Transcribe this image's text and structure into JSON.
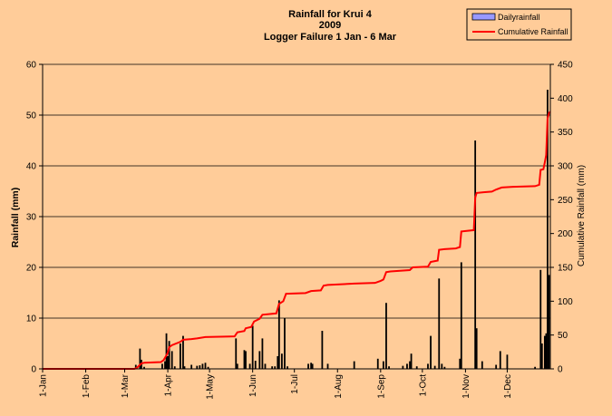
{
  "chart_data": {
    "type": "bar+line",
    "title": [
      "Rainfall  for Krui 4",
      "2009",
      "Logger Failure 1 Jan - 6 Mar"
    ],
    "ylabel_left": "Rainfall (mm)",
    "ylabel_right": "Cumulative Rainfall (mm)",
    "ylim_left": [
      0,
      60
    ],
    "ylim_right": [
      0,
      450
    ],
    "yticks_left": [
      "0",
      "10",
      "20",
      "30",
      "40",
      "50",
      "60"
    ],
    "yticks_right": [
      "0",
      "50",
      "100",
      "150",
      "200",
      "250",
      "300",
      "350",
      "400",
      "450"
    ],
    "x_domain_days": [
      1,
      366
    ],
    "xticks": [
      {
        "label": "1-Jan",
        "day": 1
      },
      {
        "label": "1-Feb",
        "day": 32
      },
      {
        "label": "1-Mar",
        "day": 60
      },
      {
        "label": "1-Apr",
        "day": 91
      },
      {
        "label": "1-May",
        "day": 121
      },
      {
        "label": "1-Jun",
        "day": 152
      },
      {
        "label": "1-Jul",
        "day": 182
      },
      {
        "label": "1-Aug",
        "day": 213
      },
      {
        "label": "1-Sep",
        "day": 244
      },
      {
        "label": "1-Oct",
        "day": 274
      },
      {
        "label": "1-Nov",
        "day": 305
      },
      {
        "label": "1-Dec",
        "day": 335
      }
    ],
    "legend": {
      "position": "top-right",
      "bar_label": "Dailyrainfall",
      "line_label": "Cumulative Rainfall"
    },
    "colors": {
      "bar": "#000000",
      "bar_legend_fill": "#9999FF",
      "line": "#FF0000",
      "background": "#FFCC99",
      "grid": "#000000"
    },
    "grid": true,
    "daily_rainfall": [
      {
        "day": 68,
        "mm": 0.8
      },
      {
        "day": 71,
        "mm": 4.0
      },
      {
        "day": 72,
        "mm": 1.8
      },
      {
        "day": 74,
        "mm": 0.4
      },
      {
        "day": 87,
        "mm": 1.0
      },
      {
        "day": 89,
        "mm": 1.5
      },
      {
        "day": 90,
        "mm": 7.0
      },
      {
        "day": 91,
        "mm": 2.5
      },
      {
        "day": 92,
        "mm": 5.5
      },
      {
        "day": 94,
        "mm": 3.5
      },
      {
        "day": 96,
        "mm": 0.5
      },
      {
        "day": 100,
        "mm": 5.0
      },
      {
        "day": 102,
        "mm": 6.5
      },
      {
        "day": 103,
        "mm": 0.5
      },
      {
        "day": 108,
        "mm": 0.8
      },
      {
        "day": 112,
        "mm": 0.6
      },
      {
        "day": 114,
        "mm": 0.7
      },
      {
        "day": 116,
        "mm": 1.0
      },
      {
        "day": 118,
        "mm": 1.2
      },
      {
        "day": 120,
        "mm": 0.4
      },
      {
        "day": 140,
        "mm": 6.0
      },
      {
        "day": 141,
        "mm": 1.0
      },
      {
        "day": 146,
        "mm": 3.7
      },
      {
        "day": 147,
        "mm": 3.5
      },
      {
        "day": 150,
        "mm": 1.0
      },
      {
        "day": 152,
        "mm": 8.5
      },
      {
        "day": 154,
        "mm": 1.6
      },
      {
        "day": 157,
        "mm": 3.5
      },
      {
        "day": 159,
        "mm": 6.0
      },
      {
        "day": 161,
        "mm": 1.0
      },
      {
        "day": 166,
        "mm": 0.5
      },
      {
        "day": 168,
        "mm": 0.5
      },
      {
        "day": 170,
        "mm": 2.5
      },
      {
        "day": 171,
        "mm": 13.5
      },
      {
        "day": 173,
        "mm": 3.0
      },
      {
        "day": 175,
        "mm": 10.0
      },
      {
        "day": 177,
        "mm": 0.5
      },
      {
        "day": 192,
        "mm": 1.0
      },
      {
        "day": 194,
        "mm": 1.2
      },
      {
        "day": 195,
        "mm": 1.0
      },
      {
        "day": 202,
        "mm": 7.5
      },
      {
        "day": 206,
        "mm": 1.0
      },
      {
        "day": 225,
        "mm": 1.5
      },
      {
        "day": 242,
        "mm": 2.0
      },
      {
        "day": 246,
        "mm": 1.5
      },
      {
        "day": 248,
        "mm": 13.0
      },
      {
        "day": 250,
        "mm": 0.5
      },
      {
        "day": 260,
        "mm": 0.6
      },
      {
        "day": 263,
        "mm": 1.0
      },
      {
        "day": 265,
        "mm": 1.5
      },
      {
        "day": 266,
        "mm": 3.0
      },
      {
        "day": 270,
        "mm": 0.5
      },
      {
        "day": 278,
        "mm": 1.0
      },
      {
        "day": 280,
        "mm": 6.5
      },
      {
        "day": 283,
        "mm": 0.6
      },
      {
        "day": 286,
        "mm": 17.8
      },
      {
        "day": 288,
        "mm": 1.0
      },
      {
        "day": 290,
        "mm": 0.4
      },
      {
        "day": 301,
        "mm": 2.0
      },
      {
        "day": 302,
        "mm": 21.0
      },
      {
        "day": 312,
        "mm": 45.0
      },
      {
        "day": 313,
        "mm": 8.0
      },
      {
        "day": 317,
        "mm": 1.5
      },
      {
        "day": 327,
        "mm": 0.8
      },
      {
        "day": 330,
        "mm": 3.5
      },
      {
        "day": 335,
        "mm": 2.8
      },
      {
        "day": 355,
        "mm": 0.4
      },
      {
        "day": 359,
        "mm": 19.5
      },
      {
        "day": 360,
        "mm": 5.0
      },
      {
        "day": 362,
        "mm": 6.5
      },
      {
        "day": 363,
        "mm": 7.0
      },
      {
        "day": 364,
        "mm": 55.0
      },
      {
        "day": 365,
        "mm": 18.5
      }
    ],
    "cumulative_rainfall": [
      {
        "day": 1,
        "mm": 0
      },
      {
        "day": 67,
        "mm": 0
      },
      {
        "day": 69,
        "mm": 2
      },
      {
        "day": 71,
        "mm": 6
      },
      {
        "day": 72,
        "mm": 8
      },
      {
        "day": 74,
        "mm": 9
      },
      {
        "day": 86,
        "mm": 10
      },
      {
        "day": 88,
        "mm": 13
      },
      {
        "day": 90,
        "mm": 20
      },
      {
        "day": 91,
        "mm": 24
      },
      {
        "day": 92,
        "mm": 32
      },
      {
        "day": 94,
        "mm": 35
      },
      {
        "day": 100,
        "mm": 40
      },
      {
        "day": 102,
        "mm": 43
      },
      {
        "day": 108,
        "mm": 44
      },
      {
        "day": 112,
        "mm": 45
      },
      {
        "day": 115,
        "mm": 46
      },
      {
        "day": 118,
        "mm": 47
      },
      {
        "day": 139,
        "mm": 48
      },
      {
        "day": 141,
        "mm": 54
      },
      {
        "day": 146,
        "mm": 56
      },
      {
        "day": 147,
        "mm": 60
      },
      {
        "day": 151,
        "mm": 62
      },
      {
        "day": 153,
        "mm": 70
      },
      {
        "day": 157,
        "mm": 74
      },
      {
        "day": 159,
        "mm": 80
      },
      {
        "day": 169,
        "mm": 82
      },
      {
        "day": 171,
        "mm": 96
      },
      {
        "day": 174,
        "mm": 100
      },
      {
        "day": 176,
        "mm": 111
      },
      {
        "day": 190,
        "mm": 112
      },
      {
        "day": 194,
        "mm": 115
      },
      {
        "day": 201,
        "mm": 116
      },
      {
        "day": 203,
        "mm": 123
      },
      {
        "day": 206,
        "mm": 124
      },
      {
        "day": 225,
        "mm": 126
      },
      {
        "day": 240,
        "mm": 127
      },
      {
        "day": 244,
        "mm": 130
      },
      {
        "day": 246,
        "mm": 132
      },
      {
        "day": 248,
        "mm": 143
      },
      {
        "day": 251,
        "mm": 144
      },
      {
        "day": 265,
        "mm": 146
      },
      {
        "day": 267,
        "mm": 150
      },
      {
        "day": 278,
        "mm": 151
      },
      {
        "day": 280,
        "mm": 158
      },
      {
        "day": 285,
        "mm": 160
      },
      {
        "day": 286,
        "mm": 176
      },
      {
        "day": 290,
        "mm": 177
      },
      {
        "day": 298,
        "mm": 178
      },
      {
        "day": 301,
        "mm": 180
      },
      {
        "day": 302,
        "mm": 203
      },
      {
        "day": 311,
        "mm": 205
      },
      {
        "day": 312,
        "mm": 253
      },
      {
        "day": 313,
        "mm": 260
      },
      {
        "day": 318,
        "mm": 261
      },
      {
        "day": 324,
        "mm": 262
      },
      {
        "day": 327,
        "mm": 265
      },
      {
        "day": 331,
        "mm": 268
      },
      {
        "day": 339,
        "mm": 269
      },
      {
        "day": 355,
        "mm": 270
      },
      {
        "day": 358,
        "mm": 272
      },
      {
        "day": 359,
        "mm": 294
      },
      {
        "day": 361,
        "mm": 295
      },
      {
        "day": 362,
        "mm": 305
      },
      {
        "day": 363,
        "mm": 316
      },
      {
        "day": 364,
        "mm": 370
      },
      {
        "day": 365,
        "mm": 378
      },
      {
        "day": 366,
        "mm": 380
      }
    ]
  }
}
